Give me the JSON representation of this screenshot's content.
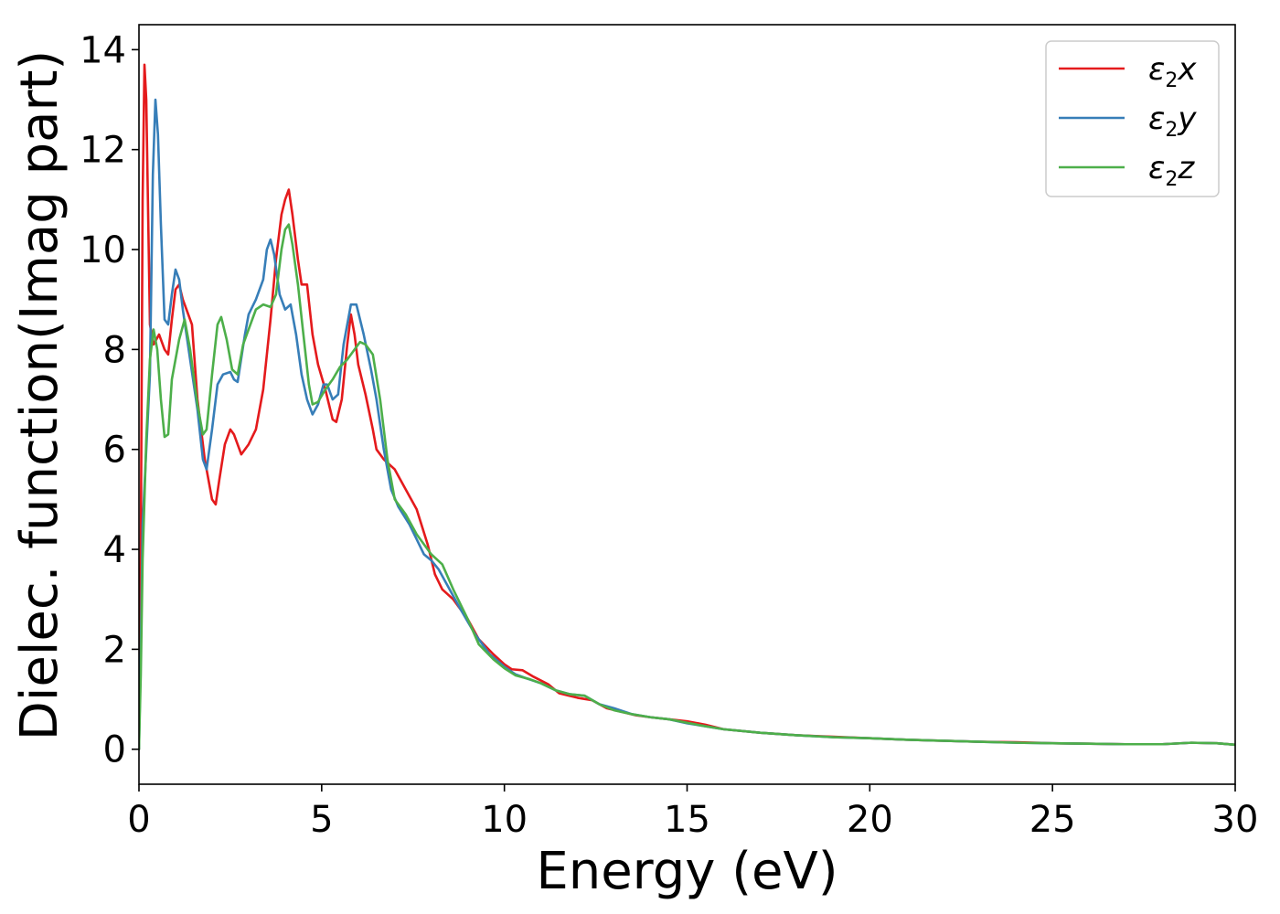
{
  "chart_data": {
    "type": "line",
    "title": "",
    "xlabel": "Energy (eV)",
    "ylabel": "Dielec. function(Imag part)",
    "xlim": [
      0,
      30
    ],
    "ylim": [
      -0.7,
      14.5
    ],
    "xticks": [
      0,
      5,
      10,
      15,
      20,
      25,
      30
    ],
    "yticks": [
      0,
      2,
      4,
      6,
      8,
      10,
      12,
      14
    ],
    "grid": false,
    "legend_position": "top-right",
    "series": [
      {
        "name": "ε2x",
        "legend": {
          "base": "ε",
          "sub": "2",
          "suffix": "x"
        },
        "color": "#e41a1c",
        "points": [
          [
            0,
            0
          ],
          [
            0.05,
            4
          ],
          [
            0.1,
            11
          ],
          [
            0.15,
            13.7
          ],
          [
            0.2,
            13
          ],
          [
            0.3,
            8.5
          ],
          [
            0.4,
            8.1
          ],
          [
            0.55,
            8.3
          ],
          [
            0.7,
            8.0
          ],
          [
            0.8,
            7.9
          ],
          [
            0.9,
            8.6
          ],
          [
            1.0,
            9.2
          ],
          [
            1.1,
            9.3
          ],
          [
            1.2,
            9.0
          ],
          [
            1.3,
            8.8
          ],
          [
            1.45,
            8.5
          ],
          [
            1.6,
            7.0
          ],
          [
            1.8,
            5.8
          ],
          [
            2.0,
            5.0
          ],
          [
            2.1,
            4.9
          ],
          [
            2.2,
            5.4
          ],
          [
            2.35,
            6.1
          ],
          [
            2.5,
            6.4
          ],
          [
            2.6,
            6.3
          ],
          [
            2.8,
            5.9
          ],
          [
            3.0,
            6.1
          ],
          [
            3.2,
            6.4
          ],
          [
            3.4,
            7.2
          ],
          [
            3.6,
            8.6
          ],
          [
            3.75,
            9.8
          ],
          [
            3.9,
            10.7
          ],
          [
            4.0,
            11.0
          ],
          [
            4.1,
            11.2
          ],
          [
            4.2,
            10.7
          ],
          [
            4.35,
            9.8
          ],
          [
            4.45,
            9.3
          ],
          [
            4.6,
            9.3
          ],
          [
            4.75,
            8.3
          ],
          [
            4.9,
            7.7
          ],
          [
            5.1,
            7.2
          ],
          [
            5.3,
            6.6
          ],
          [
            5.4,
            6.55
          ],
          [
            5.55,
            7.0
          ],
          [
            5.7,
            8.1
          ],
          [
            5.8,
            8.7
          ],
          [
            5.9,
            8.3
          ],
          [
            6.0,
            7.7
          ],
          [
            6.2,
            7.1
          ],
          [
            6.4,
            6.4
          ],
          [
            6.5,
            6.0
          ],
          [
            6.7,
            5.8
          ],
          [
            7.0,
            5.6
          ],
          [
            7.3,
            5.2
          ],
          [
            7.6,
            4.8
          ],
          [
            7.9,
            4.1
          ],
          [
            8.1,
            3.5
          ],
          [
            8.3,
            3.2
          ],
          [
            8.6,
            3.0
          ],
          [
            9.0,
            2.6
          ],
          [
            9.3,
            2.2
          ],
          [
            9.7,
            1.9
          ],
          [
            10.0,
            1.7
          ],
          [
            10.2,
            1.6
          ],
          [
            10.5,
            1.58
          ],
          [
            10.8,
            1.45
          ],
          [
            11.2,
            1.3
          ],
          [
            11.5,
            1.12
          ],
          [
            12.0,
            1.03
          ],
          [
            12.4,
            0.98
          ],
          [
            12.8,
            0.82
          ],
          [
            13.2,
            0.75
          ],
          [
            13.6,
            0.68
          ],
          [
            14.0,
            0.64
          ],
          [
            14.5,
            0.6
          ],
          [
            15.0,
            0.56
          ],
          [
            15.5,
            0.49
          ],
          [
            16.0,
            0.4
          ],
          [
            17.0,
            0.33
          ],
          [
            18.0,
            0.28
          ],
          [
            19.0,
            0.25
          ],
          [
            20.0,
            0.22
          ],
          [
            21.0,
            0.19
          ],
          [
            22.0,
            0.17
          ],
          [
            23.0,
            0.15
          ],
          [
            24.0,
            0.14
          ],
          [
            25.0,
            0.12
          ],
          [
            26.0,
            0.11
          ],
          [
            27.0,
            0.1
          ],
          [
            28.0,
            0.1
          ],
          [
            28.8,
            0.13
          ],
          [
            29.5,
            0.12
          ],
          [
            30.0,
            0.09
          ]
        ]
      },
      {
        "name": "ε2y",
        "legend": {
          "base": "ε",
          "sub": "2",
          "suffix": "y"
        },
        "color": "#377eb8",
        "points": [
          [
            0,
            0
          ],
          [
            0.05,
            2
          ],
          [
            0.1,
            4.5
          ],
          [
            0.2,
            6.0
          ],
          [
            0.3,
            7.5
          ],
          [
            0.38,
            11.5
          ],
          [
            0.45,
            13.0
          ],
          [
            0.52,
            12.3
          ],
          [
            0.6,
            10.5
          ],
          [
            0.7,
            8.6
          ],
          [
            0.8,
            8.5
          ],
          [
            0.9,
            9.1
          ],
          [
            1.0,
            9.6
          ],
          [
            1.1,
            9.4
          ],
          [
            1.2,
            8.8
          ],
          [
            1.4,
            7.8
          ],
          [
            1.6,
            6.8
          ],
          [
            1.75,
            5.8
          ],
          [
            1.85,
            5.6
          ],
          [
            2.0,
            6.4
          ],
          [
            2.15,
            7.3
          ],
          [
            2.3,
            7.5
          ],
          [
            2.5,
            7.55
          ],
          [
            2.6,
            7.4
          ],
          [
            2.7,
            7.35
          ],
          [
            2.9,
            8.3
          ],
          [
            3.0,
            8.7
          ],
          [
            3.2,
            9.0
          ],
          [
            3.4,
            9.4
          ],
          [
            3.5,
            10.0
          ],
          [
            3.6,
            10.2
          ],
          [
            3.7,
            9.9
          ],
          [
            3.85,
            9.1
          ],
          [
            4.0,
            8.8
          ],
          [
            4.15,
            8.9
          ],
          [
            4.3,
            8.3
          ],
          [
            4.45,
            7.5
          ],
          [
            4.6,
            7.0
          ],
          [
            4.75,
            6.7
          ],
          [
            4.9,
            6.9
          ],
          [
            5.05,
            7.3
          ],
          [
            5.15,
            7.3
          ],
          [
            5.3,
            7.0
          ],
          [
            5.45,
            7.1
          ],
          [
            5.6,
            8.1
          ],
          [
            5.8,
            8.9
          ],
          [
            5.95,
            8.9
          ],
          [
            6.15,
            8.3
          ],
          [
            6.35,
            7.6
          ],
          [
            6.5,
            7.0
          ],
          [
            6.7,
            6.0
          ],
          [
            6.9,
            5.2
          ],
          [
            7.1,
            4.85
          ],
          [
            7.4,
            4.5
          ],
          [
            7.6,
            4.2
          ],
          [
            7.8,
            3.9
          ],
          [
            8.0,
            3.78
          ],
          [
            8.2,
            3.6
          ],
          [
            8.5,
            3.2
          ],
          [
            8.8,
            2.8
          ],
          [
            9.2,
            2.3
          ],
          [
            9.6,
            1.9
          ],
          [
            10.0,
            1.65
          ],
          [
            10.3,
            1.5
          ],
          [
            10.6,
            1.42
          ],
          [
            11.0,
            1.32
          ],
          [
            11.4,
            1.18
          ],
          [
            11.8,
            1.1
          ],
          [
            12.2,
            1.07
          ],
          [
            12.6,
            0.9
          ],
          [
            13.0,
            0.82
          ],
          [
            13.5,
            0.7
          ],
          [
            14.0,
            0.64
          ],
          [
            14.5,
            0.6
          ],
          [
            15.0,
            0.52
          ],
          [
            15.5,
            0.46
          ],
          [
            16.0,
            0.4
          ],
          [
            17.0,
            0.33
          ],
          [
            18.0,
            0.28
          ],
          [
            19.0,
            0.24
          ],
          [
            20.0,
            0.22
          ],
          [
            21.0,
            0.19
          ],
          [
            22.0,
            0.17
          ],
          [
            23.0,
            0.15
          ],
          [
            24.0,
            0.13
          ],
          [
            25.0,
            0.12
          ],
          [
            26.0,
            0.11
          ],
          [
            27.0,
            0.1
          ],
          [
            28.0,
            0.1
          ],
          [
            28.8,
            0.13
          ],
          [
            29.5,
            0.12
          ],
          [
            30.0,
            0.09
          ]
        ]
      },
      {
        "name": "ε2z",
        "legend": {
          "base": "ε",
          "sub": "2",
          "suffix": "z"
        },
        "color": "#4daf4a",
        "points": [
          [
            0,
            0
          ],
          [
            0.05,
            1.5
          ],
          [
            0.1,
            3.8
          ],
          [
            0.2,
            6.2
          ],
          [
            0.3,
            7.8
          ],
          [
            0.4,
            8.4
          ],
          [
            0.5,
            8.0
          ],
          [
            0.6,
            7.0
          ],
          [
            0.7,
            6.25
          ],
          [
            0.8,
            6.3
          ],
          [
            0.9,
            7.4
          ],
          [
            1.1,
            8.2
          ],
          [
            1.25,
            8.6
          ],
          [
            1.4,
            8.0
          ],
          [
            1.6,
            6.9
          ],
          [
            1.75,
            6.3
          ],
          [
            1.85,
            6.4
          ],
          [
            2.0,
            7.5
          ],
          [
            2.15,
            8.5
          ],
          [
            2.25,
            8.65
          ],
          [
            2.4,
            8.2
          ],
          [
            2.55,
            7.6
          ],
          [
            2.7,
            7.5
          ],
          [
            2.85,
            8.1
          ],
          [
            3.0,
            8.4
          ],
          [
            3.2,
            8.8
          ],
          [
            3.4,
            8.9
          ],
          [
            3.6,
            8.85
          ],
          [
            3.75,
            9.1
          ],
          [
            3.9,
            10.0
          ],
          [
            4.0,
            10.4
          ],
          [
            4.1,
            10.5
          ],
          [
            4.2,
            10.1
          ],
          [
            4.35,
            9.3
          ],
          [
            4.5,
            8.3
          ],
          [
            4.65,
            7.3
          ],
          [
            4.75,
            6.9
          ],
          [
            4.9,
            6.95
          ],
          [
            5.1,
            7.2
          ],
          [
            5.3,
            7.4
          ],
          [
            5.5,
            7.65
          ],
          [
            5.7,
            7.8
          ],
          [
            5.9,
            8.0
          ],
          [
            6.05,
            8.15
          ],
          [
            6.2,
            8.1
          ],
          [
            6.4,
            7.9
          ],
          [
            6.6,
            7.0
          ],
          [
            6.8,
            5.8
          ],
          [
            7.0,
            5.0
          ],
          [
            7.3,
            4.7
          ],
          [
            7.6,
            4.3
          ],
          [
            8.0,
            3.9
          ],
          [
            8.3,
            3.7
          ],
          [
            8.6,
            3.2
          ],
          [
            9.0,
            2.6
          ],
          [
            9.3,
            2.1
          ],
          [
            9.7,
            1.8
          ],
          [
            10.0,
            1.62
          ],
          [
            10.3,
            1.48
          ],
          [
            10.7,
            1.4
          ],
          [
            11.0,
            1.32
          ],
          [
            11.4,
            1.18
          ],
          [
            11.8,
            1.1
          ],
          [
            12.2,
            1.07
          ],
          [
            12.6,
            0.9
          ],
          [
            13.0,
            0.78
          ],
          [
            13.5,
            0.7
          ],
          [
            14.0,
            0.64
          ],
          [
            14.5,
            0.6
          ],
          [
            15.0,
            0.53
          ],
          [
            15.5,
            0.46
          ],
          [
            16.0,
            0.4
          ],
          [
            17.0,
            0.33
          ],
          [
            18.0,
            0.28
          ],
          [
            19.0,
            0.24
          ],
          [
            20.0,
            0.22
          ],
          [
            21.0,
            0.19
          ],
          [
            22.0,
            0.17
          ],
          [
            23.0,
            0.15
          ],
          [
            24.0,
            0.13
          ],
          [
            25.0,
            0.12
          ],
          [
            26.0,
            0.11
          ],
          [
            27.0,
            0.1
          ],
          [
            28.0,
            0.1
          ],
          [
            28.8,
            0.13
          ],
          [
            29.5,
            0.12
          ],
          [
            30.0,
            0.09
          ]
        ]
      }
    ]
  }
}
